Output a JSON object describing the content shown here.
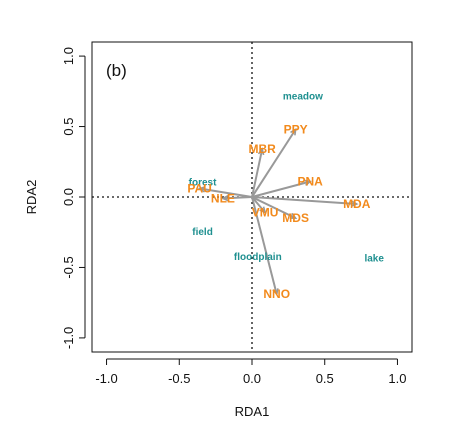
{
  "chart_data": {
    "type": "scatter",
    "panel_label": "(b)",
    "xlabel": "RDA1",
    "ylabel": "RDA2",
    "xlim": [
      -1.1,
      1.1
    ],
    "ylim": [
      -1.1,
      1.1
    ],
    "x_ticks": [
      -1.0,
      -0.5,
      0.0,
      0.5,
      1.0
    ],
    "x_tick_labels": [
      "-1.0",
      "-0.5",
      "0.0",
      "0.5",
      "1.0"
    ],
    "y_ticks": [
      -1.0,
      -0.5,
      0.0,
      0.5,
      1.0
    ],
    "y_tick_labels": [
      "-1.0",
      "-0.5",
      "0.0",
      "0.5",
      "1.0"
    ],
    "reference_lines": {
      "x0": true,
      "y0": true,
      "style": "dotted"
    },
    "grid": false,
    "colors": {
      "arrows": "#999999",
      "species_labels": "#f28a1c",
      "site_labels": "#1f9090",
      "axes": "#111111"
    },
    "species": [
      {
        "name": "PPY",
        "x": 0.3,
        "y": 0.48
      },
      {
        "name": "MBR",
        "x": 0.07,
        "y": 0.34
      },
      {
        "name": "PNA",
        "x": 0.4,
        "y": 0.11
      },
      {
        "name": "PAU",
        "x": -0.36,
        "y": 0.06
      },
      {
        "name": "NLE",
        "x": -0.2,
        "y": -0.01
      },
      {
        "name": "MDA",
        "x": 0.72,
        "y": -0.05
      },
      {
        "name": "VMU",
        "x": 0.09,
        "y": -0.11
      },
      {
        "name": "MDS",
        "x": 0.3,
        "y": -0.15
      },
      {
        "name": "NNO",
        "x": 0.17,
        "y": -0.69
      }
    ],
    "sites": [
      {
        "name": "meadow",
        "x": 0.35,
        "y": 0.72
      },
      {
        "name": "forest",
        "x": -0.34,
        "y": 0.11
      },
      {
        "name": "field",
        "x": -0.34,
        "y": -0.24
      },
      {
        "name": "floodplain",
        "x": 0.04,
        "y": -0.42
      },
      {
        "name": "lake",
        "x": 0.84,
        "y": -0.43
      }
    ]
  }
}
